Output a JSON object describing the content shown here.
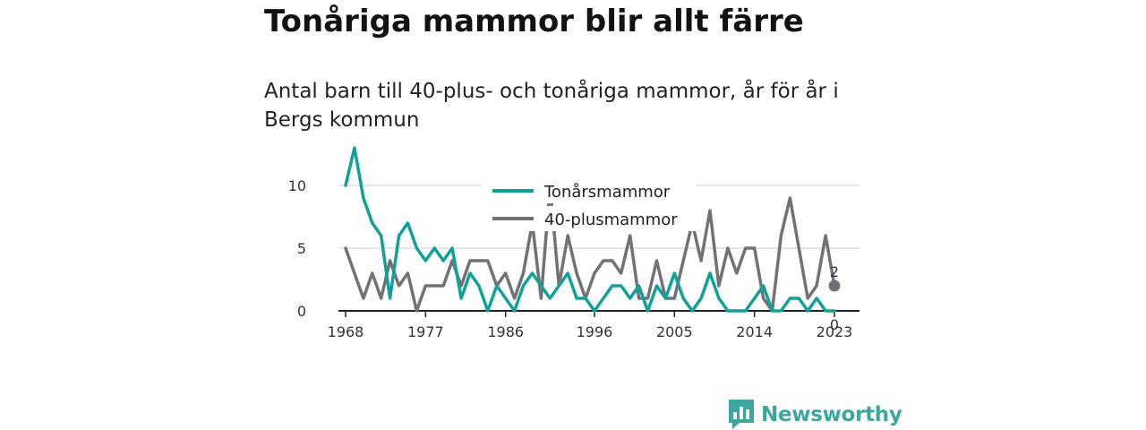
{
  "header": {
    "title": "Tonåriga mammor blir allt färre",
    "subtitle": "Antal barn till 40-plus- och tonåriga mammor, år för år i Bergs kommun"
  },
  "brand": {
    "name": "Newsworthy",
    "color": "#3aa7a0"
  },
  "chart_data": {
    "type": "line",
    "title": "",
    "xlabel": "",
    "ylabel": "",
    "x": [
      1968,
      1969,
      1970,
      1971,
      1972,
      1973,
      1974,
      1975,
      1976,
      1977,
      1978,
      1979,
      1980,
      1981,
      1982,
      1983,
      1984,
      1985,
      1986,
      1987,
      1988,
      1989,
      1990,
      1991,
      1992,
      1993,
      1994,
      1995,
      1996,
      1997,
      1998,
      1999,
      2000,
      2001,
      2002,
      2003,
      2004,
      2005,
      2006,
      2007,
      2008,
      2009,
      2010,
      2011,
      2012,
      2013,
      2014,
      2015,
      2016,
      2017,
      2018,
      2019,
      2020,
      2021,
      2022,
      2023
    ],
    "x_ticks": [
      1968,
      1977,
      1986,
      1996,
      2005,
      2014,
      2023
    ],
    "y_ticks": [
      0,
      5,
      10
    ],
    "xlim": [
      1968,
      2023
    ],
    "ylim": [
      0,
      14
    ],
    "grid": true,
    "legend_position": "top",
    "series": [
      {
        "name": "Tonårsmammor",
        "color": "#12a19a",
        "values": [
          10,
          13,
          9,
          7,
          6,
          1,
          6,
          7,
          5,
          4,
          5,
          4,
          5,
          1,
          3,
          2,
          0,
          2,
          1,
          0,
          2,
          3,
          2,
          1,
          2,
          3,
          1,
          1,
          0,
          1,
          2,
          2,
          1,
          2,
          0,
          2,
          1,
          3,
          1,
          0,
          1,
          3,
          1,
          0,
          0,
          0,
          1,
          2,
          0,
          0,
          1,
          1,
          0,
          1,
          0,
          0
        ],
        "end_label": "0"
      },
      {
        "name": "40-plusmammor",
        "color": "#727276",
        "values": [
          5,
          3,
          1,
          3,
          1,
          4,
          2,
          3,
          0,
          2,
          2,
          2,
          4,
          2,
          4,
          4,
          4,
          2,
          3,
          1,
          3,
          7,
          1,
          10,
          2,
          6,
          3,
          1,
          3,
          4,
          4,
          3,
          6,
          1,
          1,
          4,
          1,
          1,
          4,
          7,
          4,
          8,
          2,
          5,
          3,
          5,
          5,
          1,
          0,
          6,
          9,
          5,
          1,
          2,
          6,
          2
        ],
        "end_label": "2"
      }
    ]
  }
}
